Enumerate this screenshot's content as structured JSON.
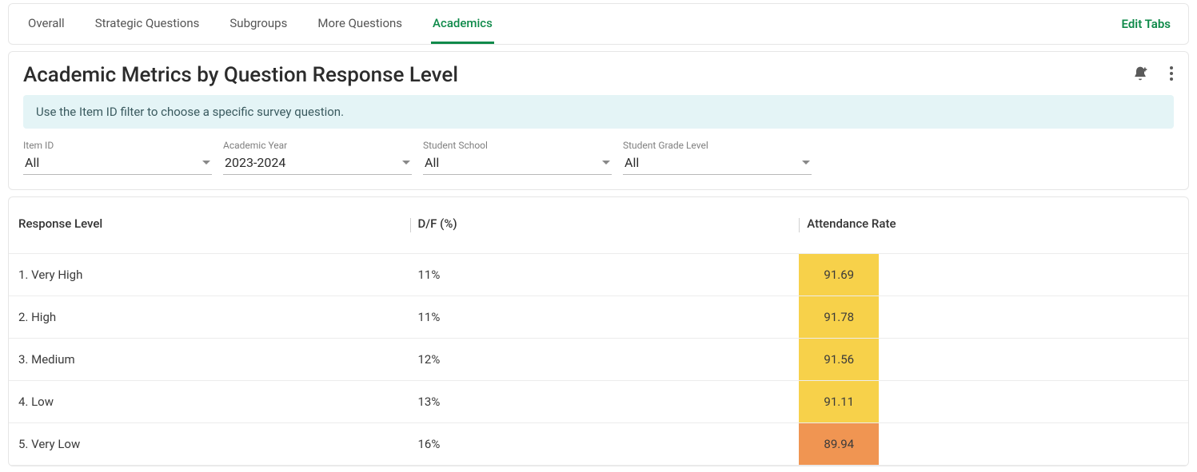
{
  "tabs": {
    "items": [
      {
        "label": "Overall",
        "active": false
      },
      {
        "label": "Strategic Questions",
        "active": false
      },
      {
        "label": "Subgroups",
        "active": false
      },
      {
        "label": "More Questions",
        "active": false
      },
      {
        "label": "Academics",
        "active": true
      }
    ],
    "edit_label": "Edit Tabs"
  },
  "panel": {
    "title": "Academic Metrics by Question Response Level",
    "info": "Use the Item ID filter to choose a specific survey question."
  },
  "filters": [
    {
      "label": "Item ID",
      "value": "All"
    },
    {
      "label": "Academic Year",
      "value": "2023-2024"
    },
    {
      "label": "Student School",
      "value": "All"
    },
    {
      "label": "Student Grade Level",
      "value": "All"
    }
  ],
  "table": {
    "columns": [
      {
        "header": "Response Level",
        "class": "col-response"
      },
      {
        "header": "D/F (%)",
        "class": "col-df"
      },
      {
        "header": "Attendance Rate",
        "class": "col-att"
      }
    ],
    "rows": [
      {
        "response": "1. Very High",
        "df": "11%",
        "att": "91.69",
        "att_color": "#f7d14a"
      },
      {
        "response": "2. High",
        "df": "11%",
        "att": "91.78",
        "att_color": "#f7d14a"
      },
      {
        "response": "3. Medium",
        "df": "12%",
        "att": "91.56",
        "att_color": "#f7d14a"
      },
      {
        "response": "4. Low",
        "df": "13%",
        "att": "91.11",
        "att_color": "#f7d14a"
      },
      {
        "response": "5. Very Low",
        "df": "16%",
        "att": "89.94",
        "att_color": "#f09552"
      }
    ]
  },
  "colors": {
    "accent": "#0f8a4a",
    "banner_bg": "#e4f4f6",
    "border": "#e6e6e6"
  }
}
